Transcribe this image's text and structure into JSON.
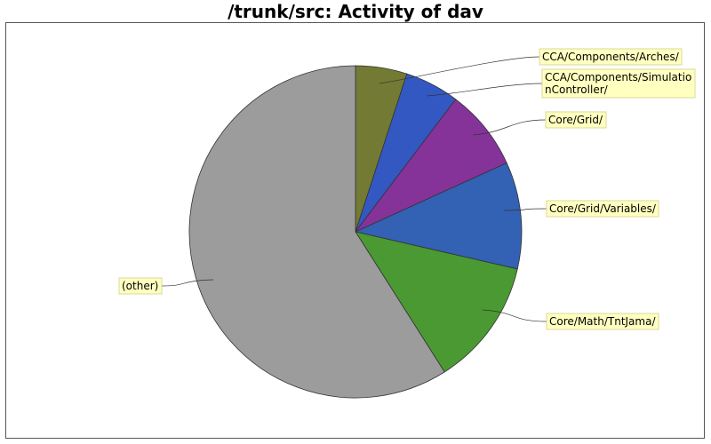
{
  "chart_data": {
    "type": "pie",
    "title": "/trunk/src: Activity of dav",
    "slices": [
      {
        "label": "CCA/Components/Arches/",
        "label_lines": [
          "CCA/Components/Arches/"
        ],
        "value": 5.0,
        "color": "#737a33"
      },
      {
        "label": "CCA/Components/SimulationController/",
        "label_lines": [
          "CCA/Components/Simulatio",
          "nController/"
        ],
        "value": 5.3,
        "color": "#3358c2"
      },
      {
        "label": "Core/Grid/",
        "label_lines": [
          "Core/Grid/"
        ],
        "value": 7.9,
        "color": "#853399"
      },
      {
        "label": "Core/Grid/Variables/",
        "label_lines": [
          "Core/Grid/Variables/"
        ],
        "value": 10.4,
        "color": "#3361b3"
      },
      {
        "label": "Core/Math/TntJama/",
        "label_lines": [
          "Core/Math/TntJama/"
        ],
        "value": 12.4,
        "color": "#4a9933"
      },
      {
        "label": "(other)",
        "label_lines": [
          "(other)"
        ],
        "value": 59.0,
        "color": "#9c9c9c"
      }
    ],
    "start_angle": "12 o'clock",
    "direction": "clockwise",
    "label_style": "callout boxes with leader lines",
    "label_box_color": "#ffffc0",
    "label_box_border": "#d8d89a"
  }
}
